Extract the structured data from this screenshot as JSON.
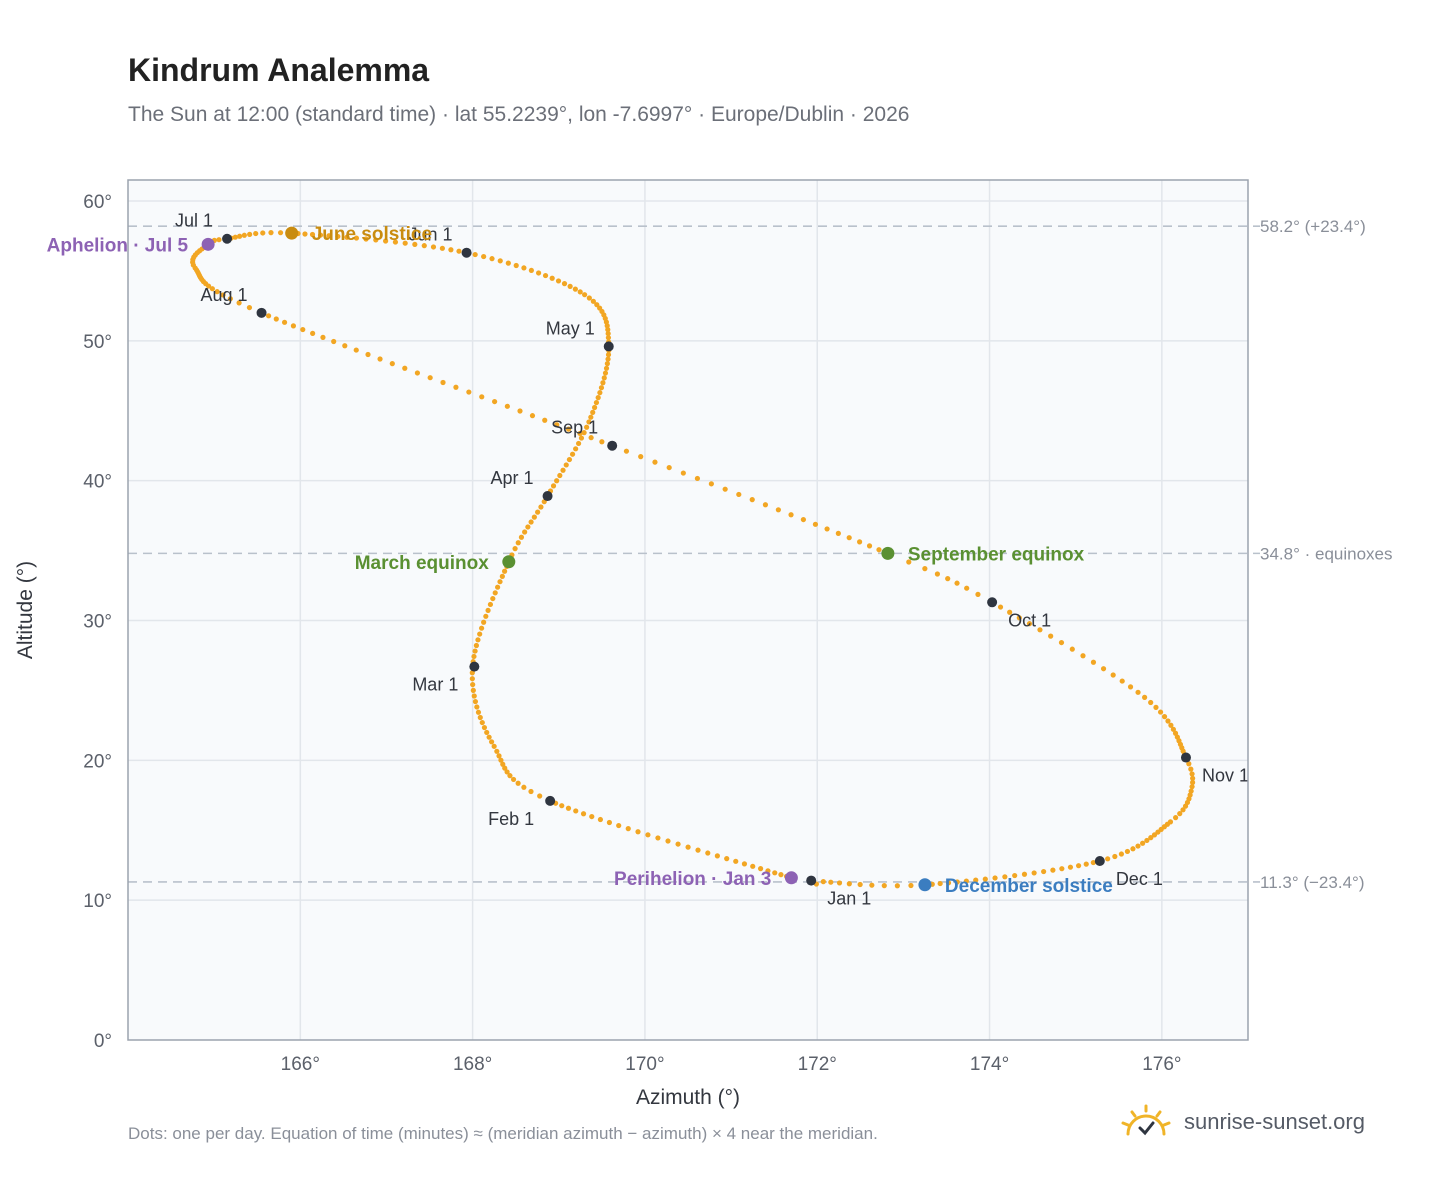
{
  "title": "Kindrum Analemma",
  "subtitle": "The Sun at 12:00 (standard time) · lat 55.2239°, lon -7.6997° · Europe/Dublin · 2026",
  "footnote": "Dots: one per day. Equation of time (minutes) ≈ (meridian azimuth − azimuth) × 4 near the meridian.",
  "brand": {
    "name": "sunrise-sunset.org",
    "icon": "sun-logo-icon",
    "color": "#f0b428"
  },
  "chart_data": {
    "type": "scatter",
    "xlabel": "Azimuth (°)",
    "ylabel": "Altitude (°)",
    "xlim": [
      164.0,
      177.0
    ],
    "ylim": [
      0,
      61.5
    ],
    "xticks": [
      166,
      168,
      170,
      172,
      174,
      176
    ],
    "xtick_labels": [
      "166°",
      "168°",
      "170°",
      "172°",
      "174°",
      "176°"
    ],
    "yticks": [
      0,
      10,
      20,
      30,
      40,
      50,
      60
    ],
    "ytick_labels": [
      "0°",
      "10°",
      "20°",
      "30°",
      "40°",
      "50°",
      "60°"
    ],
    "grid": true,
    "colors": {
      "path": "#f2a623",
      "month": "#2f3540",
      "apsis": "#8d62b4",
      "equinox": "#5a9032",
      "june": "#c98c10",
      "december": "#3b7dc0",
      "refline": "#b9c1cb",
      "plot_bg": "#f8fafc",
      "frame": "#9ba3ae",
      "grid": "#e2e6eb"
    },
    "path_keypoints": [
      {
        "day": 1,
        "az": 171.93,
        "alt": 11.4
      },
      {
        "day": 3,
        "az": 171.7,
        "alt": 11.6
      },
      {
        "day": 32,
        "az": 168.9,
        "alt": 17.1
      },
      {
        "day": 45,
        "az": 168.25,
        "alt": 21.0
      },
      {
        "day": 60,
        "az": 168.0,
        "alt": 26.7
      },
      {
        "day": 79,
        "az": 168.42,
        "alt": 34.2
      },
      {
        "day": 91,
        "az": 168.87,
        "alt": 38.9
      },
      {
        "day": 105,
        "az": 169.35,
        "alt": 44.2
      },
      {
        "day": 121,
        "az": 169.58,
        "alt": 49.6
      },
      {
        "day": 135,
        "az": 169.3,
        "alt": 53.3
      },
      {
        "day": 152,
        "az": 167.93,
        "alt": 56.3
      },
      {
        "day": 172,
        "az": 165.9,
        "alt": 57.7
      },
      {
        "day": 182,
        "az": 165.15,
        "alt": 57.3
      },
      {
        "day": 186,
        "az": 164.93,
        "alt": 56.9
      },
      {
        "day": 197,
        "az": 164.78,
        "alt": 55.2
      },
      {
        "day": 213,
        "az": 165.55,
        "alt": 52.0
      },
      {
        "day": 244,
        "az": 169.62,
        "alt": 42.5
      },
      {
        "day": 266,
        "az": 172.82,
        "alt": 34.8
      },
      {
        "day": 274,
        "az": 174.03,
        "alt": 31.3
      },
      {
        "day": 290,
        "az": 175.8,
        "alt": 24.5
      },
      {
        "day": 305,
        "az": 176.28,
        "alt": 20.2
      },
      {
        "day": 312,
        "az": 176.34,
        "alt": 17.8
      },
      {
        "day": 320,
        "az": 176.1,
        "alt": 15.6
      },
      {
        "day": 335,
        "az": 175.28,
        "alt": 12.8
      },
      {
        "day": 355,
        "az": 173.25,
        "alt": 11.1
      },
      {
        "day": 365,
        "az": 172.0,
        "alt": 11.35
      }
    ],
    "month_markers": [
      {
        "label": "Jan 1",
        "az": 171.93,
        "alt": 11.4,
        "anchor": "below-right"
      },
      {
        "label": "Feb 1",
        "az": 168.9,
        "alt": 17.1,
        "anchor": "below-left"
      },
      {
        "label": "Mar 1",
        "az": 168.02,
        "alt": 26.7,
        "anchor": "below-left"
      },
      {
        "label": "Apr 1",
        "az": 168.87,
        "alt": 38.9,
        "anchor": "above-left"
      },
      {
        "label": "May 1",
        "az": 169.58,
        "alt": 49.6,
        "anchor": "above-left"
      },
      {
        "label": "Jun 1",
        "az": 167.93,
        "alt": 56.3,
        "anchor": "above-left"
      },
      {
        "label": "Jul 1",
        "az": 165.15,
        "alt": 57.3,
        "anchor": "above-left"
      },
      {
        "label": "Aug 1",
        "az": 165.55,
        "alt": 52.0,
        "anchor": "above-left"
      },
      {
        "label": "Sep 1",
        "az": 169.62,
        "alt": 42.5,
        "anchor": "above-left"
      },
      {
        "label": "Oct 1",
        "az": 174.03,
        "alt": 31.3,
        "anchor": "below-right"
      },
      {
        "label": "Nov 1",
        "az": 176.28,
        "alt": 20.2,
        "anchor": "below-right"
      },
      {
        "label": "Dec 1",
        "az": 175.28,
        "alt": 12.8,
        "anchor": "below-right"
      }
    ],
    "events": [
      {
        "label": "Aphelion · Jul 5",
        "az": 164.93,
        "alt": 56.9,
        "kind": "apsis",
        "side": "left"
      },
      {
        "label": "June solstice",
        "az": 165.9,
        "alt": 57.7,
        "kind": "june",
        "side": "right"
      },
      {
        "label": "March equinox",
        "az": 168.42,
        "alt": 34.2,
        "kind": "equinox",
        "side": "left"
      },
      {
        "label": "September equinox",
        "az": 172.82,
        "alt": 34.8,
        "kind": "equinox",
        "side": "right"
      },
      {
        "label": "Perihelion · Jan 3",
        "az": 171.7,
        "alt": 11.6,
        "kind": "apsis",
        "side": "left"
      },
      {
        "label": "December solstice",
        "az": 173.25,
        "alt": 11.1,
        "kind": "december",
        "side": "right"
      }
    ],
    "reference_lines": [
      {
        "alt": 58.2,
        "label": "58.2° (+23.4°)"
      },
      {
        "alt": 34.8,
        "label": "34.8° · equinoxes"
      },
      {
        "alt": 11.3,
        "label": "11.3° (−23.4°)"
      }
    ]
  }
}
